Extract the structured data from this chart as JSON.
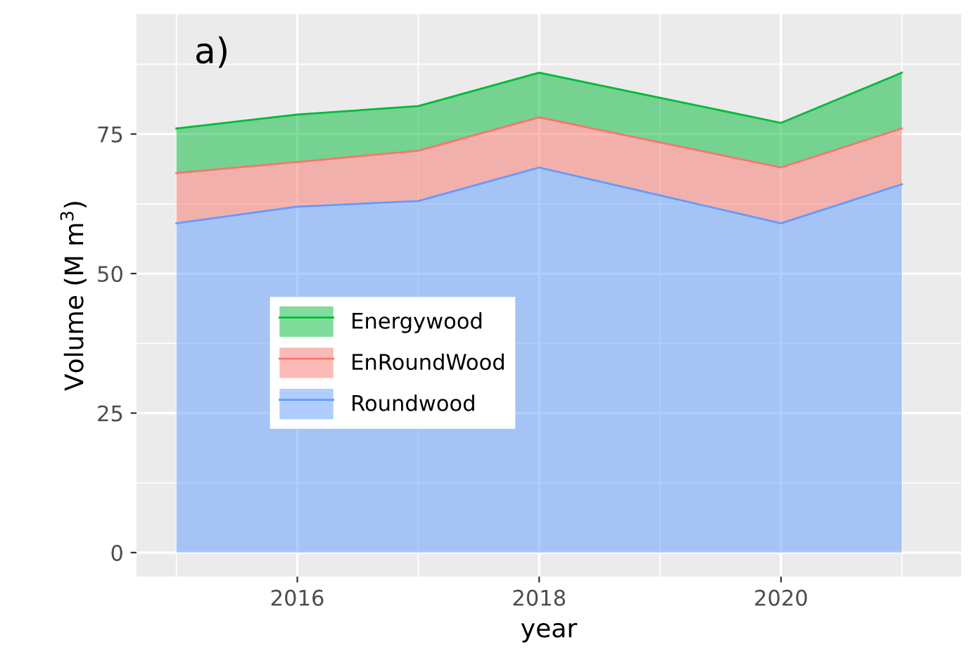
{
  "chart_data": {
    "type": "area",
    "stacked": true,
    "xlabel": "year",
    "ylabel": "Volume (M m$^{3}$)",
    "annotations": [
      "a)"
    ],
    "x": [
      2015,
      2016,
      2017,
      2018,
      2019,
      2020,
      2021
    ],
    "series": [
      {
        "name": "Roundwood",
        "color": "#619cff",
        "values": [
          59,
          62,
          63,
          69,
          64,
          59,
          66
        ]
      },
      {
        "name": "EnRoundWood",
        "color": "#f8766d",
        "values": [
          9,
          8,
          9,
          9,
          9.5,
          10,
          10
        ]
      },
      {
        "name": "Energywood",
        "color": "#00ba38",
        "values": [
          8,
          8.5,
          8,
          8,
          8,
          8,
          10
        ]
      }
    ],
    "xlim": [
      2014.67,
      2021.49
    ],
    "ylim": [
      -4.3,
      96.5
    ],
    "xticks": [
      2016,
      2018,
      2020
    ],
    "yticks": [
      0,
      25,
      50,
      75
    ],
    "grid": true,
    "legend": "center left"
  }
}
